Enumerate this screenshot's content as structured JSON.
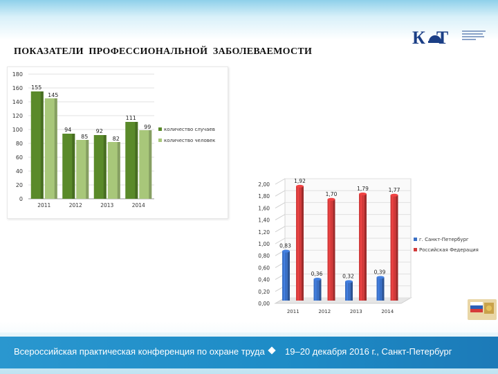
{
  "slide": {
    "title": "ПОКАЗАТЕЛИ  ПРОФЕССИОНАЛЬНОЙ  ЗАБОЛЕВАЕМОСТИ",
    "logo_text": "К  Т",
    "footer_left": "Всероссийская практическая конференция по охране труда",
    "footer_right": "19–20 декабря 2016 г., Санкт-Петербург",
    "colors": {
      "header": "#8fd0ea",
      "footer": "#1d8bc6"
    }
  },
  "chart_data": [
    {
      "type": "bar",
      "title": "",
      "xlabel": "",
      "ylabel": "",
      "categories": [
        "2011",
        "2012",
        "2013",
        "2014"
      ],
      "series": [
        {
          "name": "количество случаев",
          "values": [
            155,
            94,
            92,
            111
          ],
          "color": "#5a8a2a"
        },
        {
          "name": "количество человек",
          "values": [
            145,
            85,
            82,
            99
          ],
          "color": "#a8c77a"
        }
      ],
      "y_ticks": [
        "0",
        "20",
        "40",
        "60",
        "80",
        "100",
        "120",
        "140",
        "160",
        "180"
      ],
      "ylim": [
        0,
        180
      ],
      "grid": true,
      "legend": "right"
    },
    {
      "type": "bar",
      "title": "",
      "xlabel": "",
      "ylabel": "",
      "categories": [
        "2011",
        "2012",
        "2013",
        "2014"
      ],
      "series": [
        {
          "name": "г. Санкт-Петербург",
          "values": [
            0.83,
            0.36,
            0.32,
            0.39
          ],
          "labels": [
            "0,83",
            "0,36",
            "0,32",
            "0,39"
          ],
          "color": "#3a6fc4"
        },
        {
          "name": "Российская Федерация",
          "values": [
            1.92,
            1.7,
            1.79,
            1.77
          ],
          "labels": [
            "1,92",
            "1,70",
            "1,79",
            "1,77"
          ],
          "color": "#d23a3a"
        }
      ],
      "y_ticks": [
        "0,00",
        "0,20",
        "0,40",
        "0,60",
        "0,80",
        "1,00",
        "1,20",
        "1,40",
        "1,60",
        "1,80",
        "2,00"
      ],
      "ylim": [
        0,
        2.0
      ],
      "grid": true,
      "legend": "right"
    }
  ]
}
